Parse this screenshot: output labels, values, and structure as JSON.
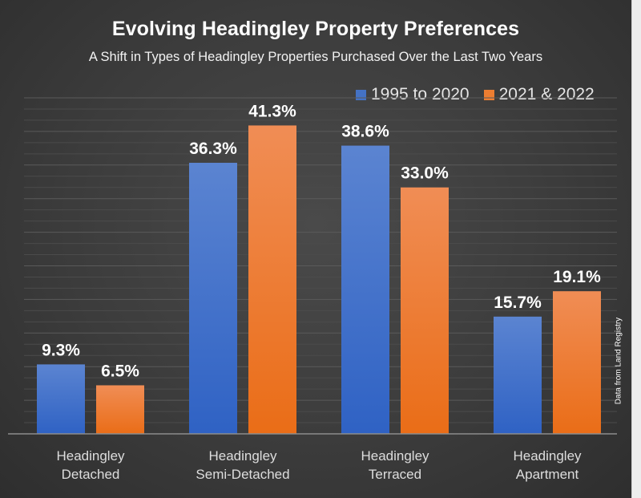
{
  "chart_data": {
    "type": "bar",
    "title": "Evolving Headingley Property Preferences",
    "subtitle": "A Shift in Types of Headingley Properties Purchased Over the Last Two Years",
    "categories": [
      [
        "Headingley",
        "Detached"
      ],
      [
        "Headingley",
        "Semi-Detached"
      ],
      [
        "Headingley",
        "Terraced"
      ],
      [
        "Headingley",
        "Apartment"
      ]
    ],
    "series": [
      {
        "name": "1995 to 2020",
        "color": "#4472C4",
        "values": [
          9.3,
          36.3,
          38.6,
          15.7
        ],
        "labels": [
          "9.3%",
          "36.3%",
          "38.6%",
          "15.7%"
        ]
      },
      {
        "name": "2021 & 2022",
        "color": "#ED7D31",
        "values": [
          6.5,
          41.3,
          33.0,
          19.1
        ],
        "labels": [
          "6.5%",
          "41.3%",
          "33.0%",
          "19.1%"
        ]
      }
    ],
    "xlabel": "",
    "ylabel": "",
    "ylim": [
      0,
      45
    ],
    "grid": true,
    "legend_position": "top-right",
    "annotation": "Data from Land Registry",
    "value_unit": "%"
  }
}
